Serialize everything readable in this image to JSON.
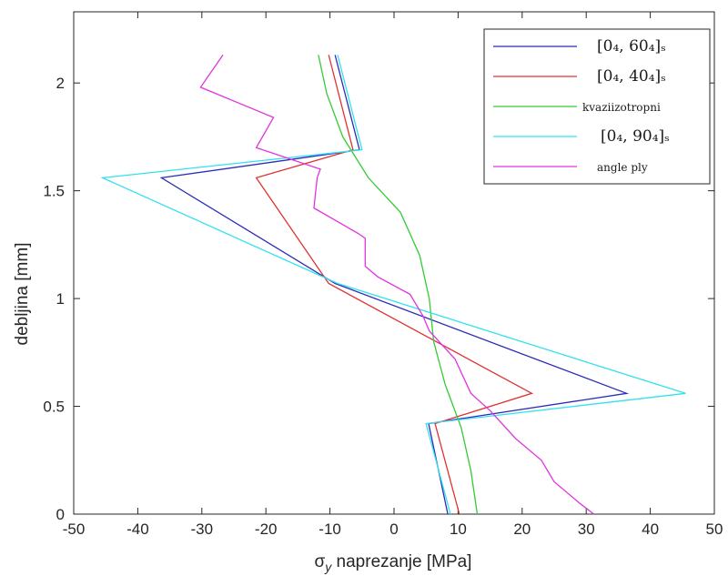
{
  "chart_data": {
    "type": "line",
    "title": "",
    "xlabel_symbol": "σ",
    "xlabel_subscript": "y",
    "xlabel_rest": " naprezanje [MPa]",
    "ylabel": "debljina [mm]",
    "xlim": [
      -50,
      50
    ],
    "ylim": [
      0,
      2.33
    ],
    "xticks": [
      "-50",
      "-40",
      "-30",
      "-20",
      "-10",
      "0",
      "10",
      "20",
      "30",
      "40",
      "50"
    ],
    "yticks": [
      "0",
      "0.5",
      "1",
      "1.5",
      "2"
    ],
    "grid": false,
    "legend_position": "top-right",
    "series": [
      {
        "name": "[0₄, 60₄]ₛ",
        "color": "#2b2bb8",
        "points": [
          [
            8.4,
            0
          ],
          [
            5.4,
            0.42
          ],
          [
            36.3,
            0.56
          ],
          [
            -9.2,
            1.07
          ],
          [
            -36.3,
            1.56
          ],
          [
            -5.4,
            1.69
          ],
          [
            -9.2,
            2.13
          ]
        ]
      },
      {
        "name": "[0₄, 40₄]ₛ",
        "color": "#e03232",
        "points": [
          [
            10.2,
            0
          ],
          [
            6.4,
            0.42
          ],
          [
            21.5,
            0.56
          ],
          [
            -10.2,
            1.07
          ],
          [
            -21.5,
            1.56
          ],
          [
            -6.4,
            1.69
          ],
          [
            -10.2,
            2.13
          ]
        ]
      },
      {
        "name": "kvaziizotropni",
        "color": "#33cc33",
        "points": [
          [
            13.0,
            0
          ],
          [
            12.0,
            0.2
          ],
          [
            10.5,
            0.4
          ],
          [
            8.0,
            0.6
          ],
          [
            6.2,
            0.8
          ],
          [
            5.5,
            1.0
          ],
          [
            4.0,
            1.2
          ],
          [
            1.0,
            1.4
          ],
          [
            -4.0,
            1.56
          ],
          [
            -8.0,
            1.75
          ],
          [
            -10.5,
            1.95
          ],
          [
            -11.8,
            2.13
          ]
        ]
      },
      {
        "name": "[0₄, 90₄]ₛ",
        "color": "#33e0f0",
        "points": [
          [
            8.8,
            0
          ],
          [
            5.0,
            0.42
          ],
          [
            45.5,
            0.56
          ],
          [
            -8.8,
            1.07
          ],
          [
            -45.5,
            1.56
          ],
          [
            -5.0,
            1.69
          ],
          [
            -8.8,
            2.13
          ]
        ]
      },
      {
        "name": "angle ply",
        "color": "#e034e0",
        "points": [
          [
            31.2,
            0
          ],
          [
            29.0,
            0.05
          ],
          [
            25.0,
            0.15
          ],
          [
            23.0,
            0.25
          ],
          [
            19.0,
            0.35
          ],
          [
            15.0,
            0.48
          ],
          [
            12.0,
            0.56
          ],
          [
            9.5,
            0.72
          ],
          [
            5.5,
            0.85
          ],
          [
            4.5,
            0.92
          ],
          [
            2.5,
            1.02
          ],
          [
            -2.5,
            1.1
          ],
          [
            -4.5,
            1.15
          ],
          [
            -4.5,
            1.28
          ],
          [
            -5.5,
            1.3
          ],
          [
            -12.5,
            1.42
          ],
          [
            -12.0,
            1.56
          ],
          [
            -11.5,
            1.6
          ],
          [
            -21.5,
            1.7
          ],
          [
            -18.8,
            1.84
          ],
          [
            -30.2,
            1.98
          ],
          [
            -26.7,
            2.13
          ]
        ]
      }
    ]
  }
}
